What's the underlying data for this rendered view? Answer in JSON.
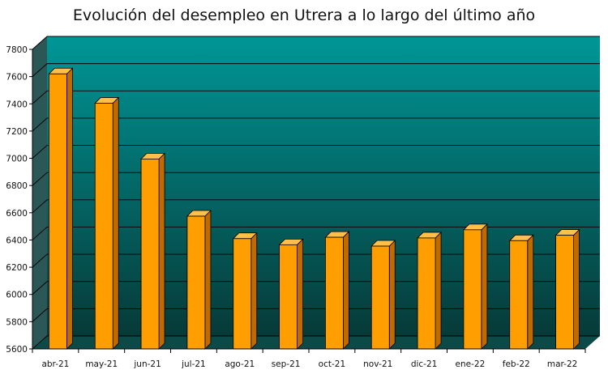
{
  "chart_data": {
    "type": "bar",
    "title": "Evolución del desempleo en Utrera a lo largo del último año",
    "categories": [
      "abr-21",
      "may-21",
      "jun-21",
      "jul-21",
      "ago-21",
      "sep-21",
      "oct-21",
      "nov-21",
      "dic-21",
      "ene-22",
      "feb-22",
      "mar-22"
    ],
    "values": [
      7620,
      7405,
      6995,
      6575,
      6410,
      6365,
      6420,
      6355,
      6415,
      6475,
      6395,
      6435
    ],
    "ylim": [
      5600,
      7800
    ],
    "yticks": [
      "5600",
      "5800",
      "6000",
      "6200",
      "6400",
      "6600",
      "6800",
      "7000",
      "7200",
      "7400",
      "7600",
      "7800"
    ],
    "xlabel": "",
    "ylabel": "",
    "grid": true,
    "colors": {
      "bar_front": "#FF9E00",
      "bar_side": "#C06A00",
      "bar_top": "#FFC04A",
      "wall_top": "#009696",
      "wall_bottom": "#063A38",
      "floor": "#0C4A48"
    }
  }
}
